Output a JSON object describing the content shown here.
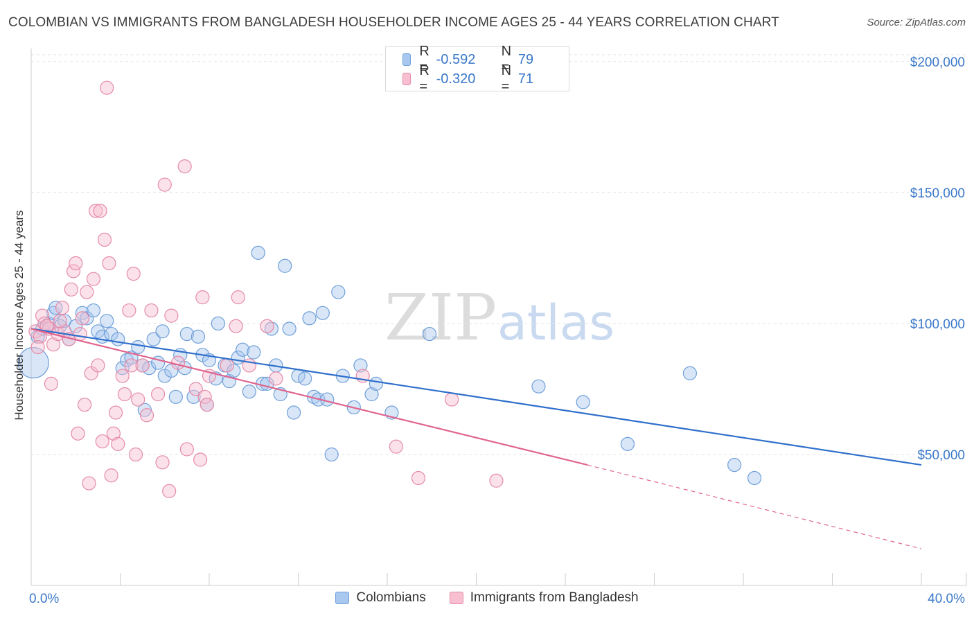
{
  "title": "COLOMBIAN VS IMMIGRANTS FROM BANGLADESH HOUSEHOLDER INCOME AGES 25 - 44 YEARS CORRELATION CHART",
  "source": "Source: ZipAtlas.com",
  "watermark": {
    "part1": "ZIP",
    "part2": "atlas"
  },
  "legend_top": [
    {
      "r_label": "R =",
      "r_value": "-0.592",
      "n_label": "N =",
      "n_value": "79",
      "color": "#a9c8f0",
      "stroke": "#6f9fd8"
    },
    {
      "r_label": "R =",
      "r_value": "-0.320",
      "n_label": "N =",
      "n_value": "71",
      "color": "#f7bfd0",
      "stroke": "#e58aa8"
    }
  ],
  "legend_bottom": [
    {
      "label": "Colombians",
      "color": "#a9c8f0",
      "stroke": "#6f9fd8"
    },
    {
      "label": "Immigrants from Bangladesh",
      "color": "#f7bfd0",
      "stroke": "#e58aa8"
    }
  ],
  "chart_data": {
    "type": "scatter",
    "title": "COLOMBIAN VS IMMIGRANTS FROM BANGLADESH HOUSEHOLDER INCOME AGES 25 - 44 YEARS CORRELATION CHART",
    "xlabel": "",
    "ylabel": "Householder Income Ages 25 - 44 years",
    "xlim": [
      0,
      40
    ],
    "ylim": [
      0,
      205000
    ],
    "x_tick_labels": [
      {
        "value": 0,
        "label": "0.0%"
      },
      {
        "value": 40,
        "label": "40.0%"
      }
    ],
    "y_tick_labels": [
      {
        "value": 50000,
        "label": "$50,000"
      },
      {
        "value": 100000,
        "label": "$100,000"
      },
      {
        "value": 150000,
        "label": "$150,000"
      },
      {
        "value": 200000,
        "label": "$200,000"
      }
    ],
    "grid": true,
    "series": [
      {
        "name": "Colombians",
        "color": "#6f9fd8",
        "fill": "#a9c8f0",
        "trend": {
          "x0": 0,
          "y0": 98000,
          "x1": 40,
          "y1": 46000
        },
        "points": [
          [
            0.3,
            95000
          ],
          [
            0.5,
            98000
          ],
          [
            0.8,
            100000
          ],
          [
            1.0,
            104000
          ],
          [
            1.1,
            106000
          ],
          [
            1.3,
            99000
          ],
          [
            1.5,
            101000
          ],
          [
            1.7,
            94000
          ],
          [
            2.0,
            99000
          ],
          [
            2.3,
            104000
          ],
          [
            2.5,
            102000
          ],
          [
            2.8,
            105000
          ],
          [
            3.0,
            97000
          ],
          [
            3.2,
            95000
          ],
          [
            3.4,
            101000
          ],
          [
            3.6,
            96000
          ],
          [
            3.9,
            94000
          ],
          [
            4.1,
            83000
          ],
          [
            4.3,
            86000
          ],
          [
            4.5,
            87000
          ],
          [
            4.8,
            91000
          ],
          [
            5.0,
            84000
          ],
          [
            5.1,
            67000
          ],
          [
            5.3,
            83000
          ],
          [
            5.5,
            94000
          ],
          [
            5.7,
            85000
          ],
          [
            5.9,
            97000
          ],
          [
            6.0,
            80000
          ],
          [
            6.3,
            82000
          ],
          [
            6.5,
            72000
          ],
          [
            6.7,
            88000
          ],
          [
            6.9,
            83000
          ],
          [
            7.0,
            96000
          ],
          [
            7.3,
            72000
          ],
          [
            7.5,
            95000
          ],
          [
            7.7,
            88000
          ],
          [
            7.9,
            69000
          ],
          [
            8.0,
            86000
          ],
          [
            8.3,
            79000
          ],
          [
            8.4,
            100000
          ],
          [
            8.7,
            84000
          ],
          [
            8.9,
            78000
          ],
          [
            9.1,
            82000
          ],
          [
            9.3,
            87000
          ],
          [
            9.5,
            90000
          ],
          [
            9.8,
            74000
          ],
          [
            10.0,
            89000
          ],
          [
            10.2,
            127000
          ],
          [
            10.4,
            77000
          ],
          [
            10.6,
            77000
          ],
          [
            10.8,
            98000
          ],
          [
            11.0,
            84000
          ],
          [
            11.2,
            73000
          ],
          [
            11.4,
            122000
          ],
          [
            11.6,
            98000
          ],
          [
            11.8,
            66000
          ],
          [
            12.0,
            80000
          ],
          [
            12.3,
            79000
          ],
          [
            12.5,
            102000
          ],
          [
            12.7,
            72000
          ],
          [
            12.9,
            71000
          ],
          [
            13.1,
            104000
          ],
          [
            13.3,
            71000
          ],
          [
            13.5,
            50000
          ],
          [
            13.8,
            112000
          ],
          [
            14.0,
            80000
          ],
          [
            14.5,
            68000
          ],
          [
            14.8,
            84000
          ],
          [
            15.3,
            73000
          ],
          [
            15.5,
            77000
          ],
          [
            16.2,
            66000
          ],
          [
            17.9,
            96000
          ],
          [
            22.8,
            76000
          ],
          [
            24.8,
            70000
          ],
          [
            26.8,
            54000
          ],
          [
            29.6,
            81000
          ],
          [
            31.6,
            46000
          ],
          [
            32.5,
            41000
          ],
          [
            0.1,
            85000
          ]
        ]
      },
      {
        "name": "Immigrants from Bangladesh",
        "color": "#e58aa8",
        "fill": "#f7bfd0",
        "trend": {
          "x0": 0,
          "y0": 98000,
          "x1": 25,
          "y1": 46000,
          "dash_x1": 40,
          "dash_y1": 14000
        },
        "points": [
          [
            0.2,
            97000
          ],
          [
            0.4,
            95000
          ],
          [
            0.5,
            103000
          ],
          [
            0.6,
            100000
          ],
          [
            0.8,
            98000
          ],
          [
            0.9,
            77000
          ],
          [
            1.0,
            92000
          ],
          [
            1.2,
            96000
          ],
          [
            1.4,
            106000
          ],
          [
            1.5,
            97000
          ],
          [
            1.7,
            94000
          ],
          [
            1.8,
            113000
          ],
          [
            1.9,
            120000
          ],
          [
            2.0,
            123000
          ],
          [
            2.1,
            58000
          ],
          [
            2.2,
            96000
          ],
          [
            2.3,
            102000
          ],
          [
            2.4,
            69000
          ],
          [
            2.5,
            112000
          ],
          [
            2.6,
            39000
          ],
          [
            2.7,
            81000
          ],
          [
            2.8,
            117000
          ],
          [
            2.9,
            143000
          ],
          [
            3.0,
            84000
          ],
          [
            3.1,
            143000
          ],
          [
            3.2,
            55000
          ],
          [
            3.3,
            132000
          ],
          [
            3.4,
            190000
          ],
          [
            3.5,
            123000
          ],
          [
            3.6,
            42000
          ],
          [
            3.7,
            58000
          ],
          [
            3.8,
            66000
          ],
          [
            3.9,
            54000
          ],
          [
            4.1,
            80000
          ],
          [
            4.2,
            73000
          ],
          [
            4.4,
            105000
          ],
          [
            4.5,
            84000
          ],
          [
            4.6,
            119000
          ],
          [
            4.7,
            50000
          ],
          [
            4.8,
            71000
          ],
          [
            5.0,
            84000
          ],
          [
            5.2,
            65000
          ],
          [
            5.4,
            105000
          ],
          [
            5.7,
            73000
          ],
          [
            5.9,
            47000
          ],
          [
            6.0,
            153000
          ],
          [
            6.2,
            36000
          ],
          [
            6.3,
            103000
          ],
          [
            6.6,
            85000
          ],
          [
            6.9,
            160000
          ],
          [
            7.0,
            52000
          ],
          [
            7.4,
            75000
          ],
          [
            7.6,
            48000
          ],
          [
            7.7,
            110000
          ],
          [
            7.8,
            72000
          ],
          [
            7.9,
            69000
          ],
          [
            8.0,
            80000
          ],
          [
            8.8,
            84000
          ],
          [
            9.2,
            99000
          ],
          [
            9.3,
            110000
          ],
          [
            9.8,
            84000
          ],
          [
            10.6,
            99000
          ],
          [
            11.0,
            79000
          ],
          [
            14.9,
            80000
          ],
          [
            16.4,
            53000
          ],
          [
            17.4,
            41000
          ],
          [
            18.9,
            71000
          ],
          [
            20.9,
            40000
          ],
          [
            0.3,
            91000
          ],
          [
            1.3,
            101000
          ],
          [
            0.7,
            99000
          ]
        ]
      }
    ]
  }
}
